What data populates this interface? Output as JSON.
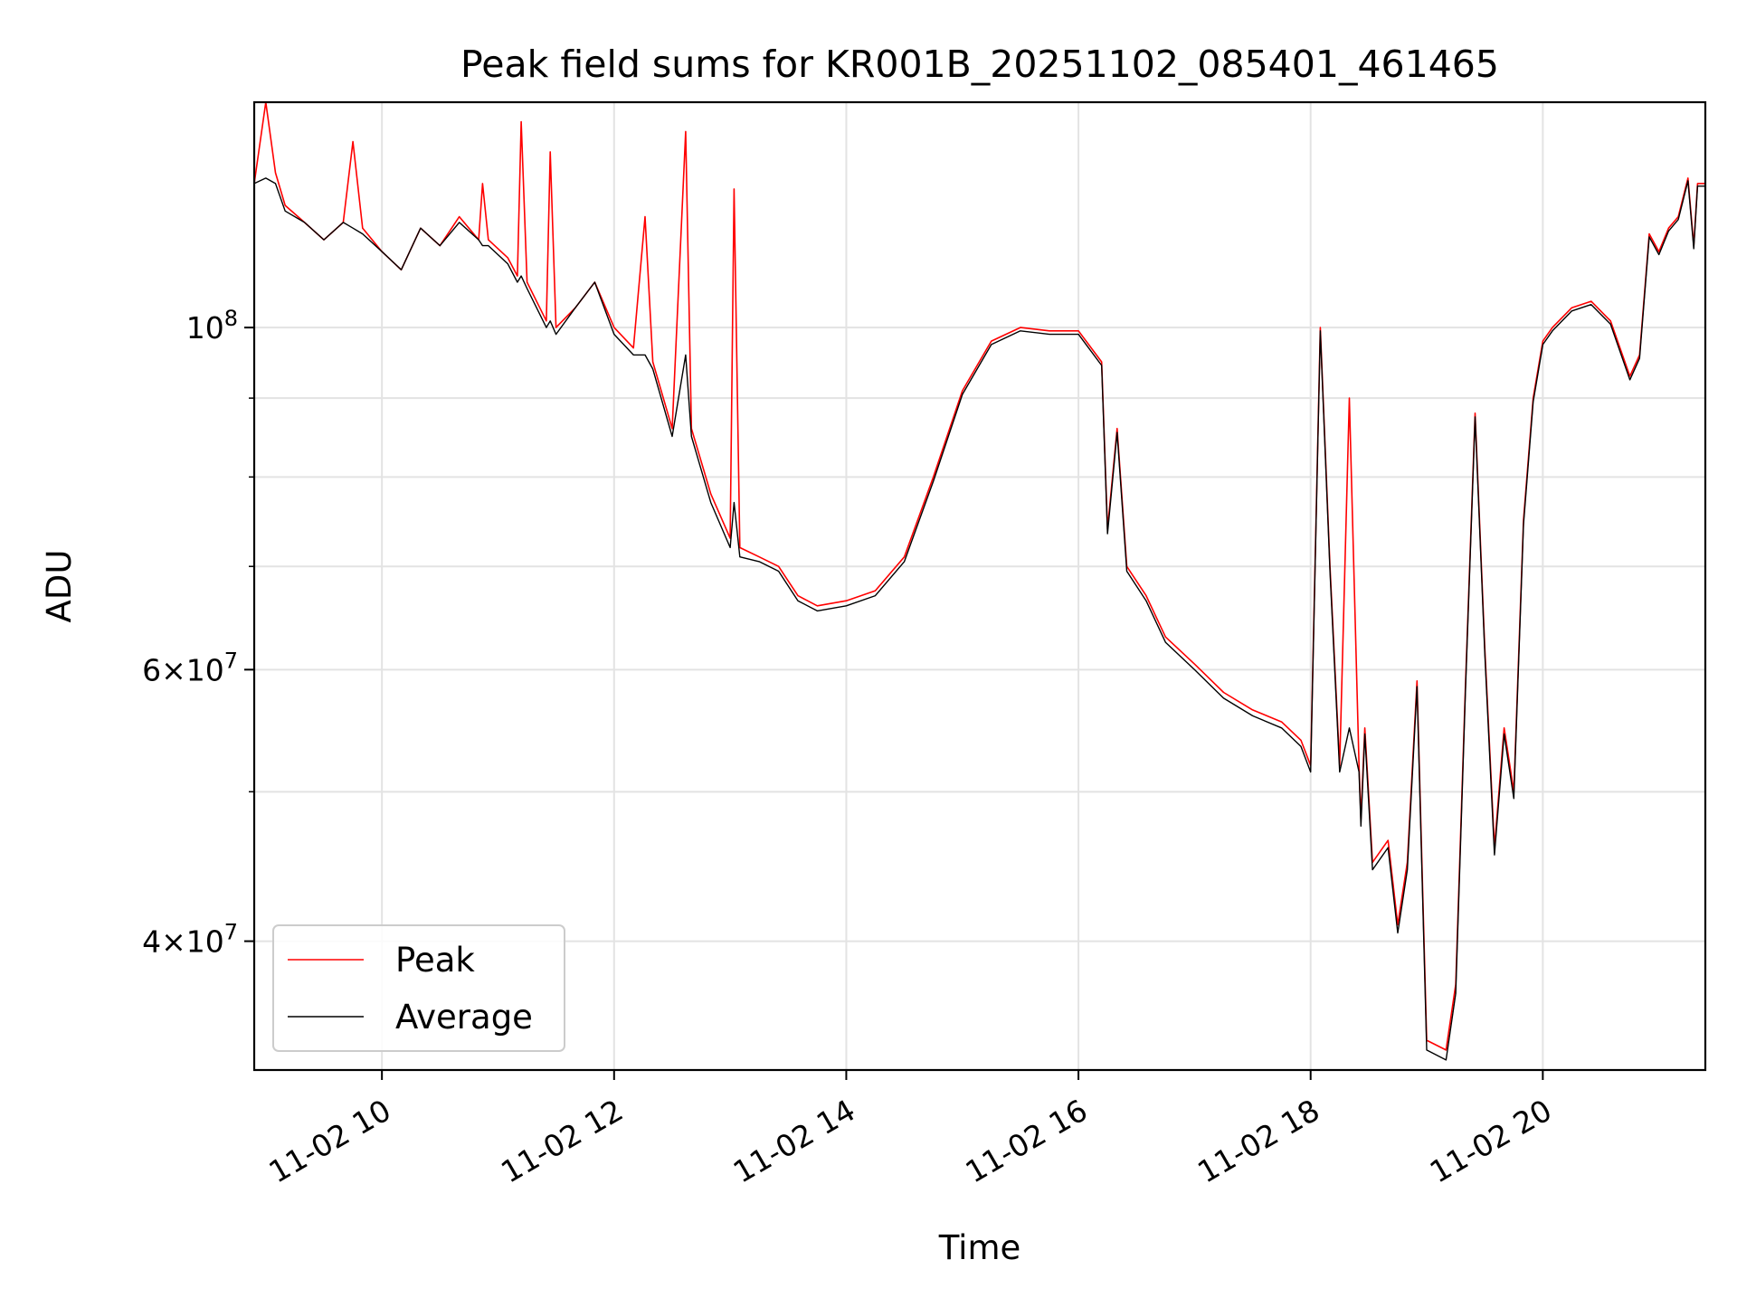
{
  "chart_data": {
    "type": "line",
    "title": "Peak field sums for KR001B_20251102_085401_461465",
    "xlabel": "Time",
    "ylabel": "ADU",
    "yscale": "log",
    "grid": true,
    "legend_position": "lower-left",
    "xlim": [
      "2025-11-02 08:54",
      "2025-11-02 21:24"
    ],
    "ylim": [
      33000000,
      140000000
    ],
    "x_ticks": [
      {
        "value": "2025-11-02 10:00",
        "label": "11-02 10"
      },
      {
        "value": "2025-11-02 12:00",
        "label": "11-02 12"
      },
      {
        "value": "2025-11-02 14:00",
        "label": "11-02 14"
      },
      {
        "value": "2025-11-02 16:00",
        "label": "11-02 16"
      },
      {
        "value": "2025-11-02 18:00",
        "label": "11-02 18"
      },
      {
        "value": "2025-11-02 20:00",
        "label": "11-02 20"
      }
    ],
    "y_ticks": [
      {
        "value": 40000000,
        "mantissa": "4",
        "exponent": "7",
        "base": "10"
      },
      {
        "value": 60000000,
        "mantissa": "6",
        "exponent": "7",
        "base": "10"
      },
      {
        "value": 100000000,
        "mantissa": "",
        "exponent": "8",
        "base": "10"
      }
    ],
    "y_minor_ticks": [
      50000000,
      70000000,
      80000000,
      90000000
    ],
    "series": [
      {
        "name": "Peak",
        "color": "#ff0000",
        "x": [
          "2025-11-02 08:54",
          "2025-11-02 09:00",
          "2025-11-02 09:05",
          "2025-11-02 09:10",
          "2025-11-02 09:20",
          "2025-11-02 09:30",
          "2025-11-02 09:40",
          "2025-11-02 09:45",
          "2025-11-02 09:50",
          "2025-11-02 10:00",
          "2025-11-02 10:10",
          "2025-11-02 10:20",
          "2025-11-02 10:30",
          "2025-11-02 10:40",
          "2025-11-02 10:50",
          "2025-11-02 10:52",
          "2025-11-02 10:55",
          "2025-11-02 11:05",
          "2025-11-02 11:10",
          "2025-11-02 11:12",
          "2025-11-02 11:15",
          "2025-11-02 11:25",
          "2025-11-02 11:27",
          "2025-11-02 11:30",
          "2025-11-02 11:40",
          "2025-11-02 11:50",
          "2025-11-02 12:00",
          "2025-11-02 12:10",
          "2025-11-02 12:16",
          "2025-11-02 12:20",
          "2025-11-02 12:30",
          "2025-11-02 12:37",
          "2025-11-02 12:40",
          "2025-11-02 12:50",
          "2025-11-02 13:00",
          "2025-11-02 13:02",
          "2025-11-02 13:05",
          "2025-11-02 13:15",
          "2025-11-02 13:25",
          "2025-11-02 13:35",
          "2025-11-02 13:45",
          "2025-11-02 14:00",
          "2025-11-02 14:15",
          "2025-11-02 14:30",
          "2025-11-02 14:45",
          "2025-11-02 15:00",
          "2025-11-02 15:15",
          "2025-11-02 15:30",
          "2025-11-02 15:45",
          "2025-11-02 16:00",
          "2025-11-02 16:12",
          "2025-11-02 16:15",
          "2025-11-02 16:20",
          "2025-11-02 16:25",
          "2025-11-02 16:35",
          "2025-11-02 16:45",
          "2025-11-02 17:00",
          "2025-11-02 17:15",
          "2025-11-02 17:30",
          "2025-11-02 17:45",
          "2025-11-02 17:55",
          "2025-11-02 18:00",
          "2025-11-02 18:05",
          "2025-11-02 18:10",
          "2025-11-02 18:15",
          "2025-11-02 18:20",
          "2025-11-02 18:25",
          "2025-11-02 18:26",
          "2025-11-02 18:28",
          "2025-11-02 18:32",
          "2025-11-02 18:40",
          "2025-11-02 18:45",
          "2025-11-02 18:50",
          "2025-11-02 18:55",
          "2025-11-02 19:00",
          "2025-11-02 19:10",
          "2025-11-02 19:15",
          "2025-11-02 19:20",
          "2025-11-02 19:25",
          "2025-11-02 19:30",
          "2025-11-02 19:35",
          "2025-11-02 19:40",
          "2025-11-02 19:45",
          "2025-11-02 19:50",
          "2025-11-02 19:55",
          "2025-11-02 20:00",
          "2025-11-02 20:05",
          "2025-11-02 20:15",
          "2025-11-02 20:25",
          "2025-11-02 20:35",
          "2025-11-02 20:45",
          "2025-11-02 20:50",
          "2025-11-02 20:55",
          "2025-11-02 21:00",
          "2025-11-02 21:05",
          "2025-11-02 21:10",
          "2025-11-02 21:15",
          "2025-11-02 21:18",
          "2025-11-02 21:20",
          "2025-11-02 21:24"
        ],
        "y": [
          124000000,
          140000000,
          126000000,
          120000000,
          117000000,
          114000000,
          117000000,
          132000000,
          116000000,
          112000000,
          109000000,
          116000000,
          113000000,
          118000000,
          114000000,
          124000000,
          114000000,
          111000000,
          108000000,
          136000000,
          107000000,
          101000000,
          130000000,
          100000000,
          103000000,
          107000000,
          100000000,
          97000000,
          118000000,
          95000000,
          86000000,
          134000000,
          86000000,
          78000000,
          73000000,
          123000000,
          72000000,
          71000000,
          70000000,
          67000000,
          66000000,
          66500000,
          67500000,
          71000000,
          80000000,
          91000000,
          98000000,
          100000000,
          99500000,
          99500000,
          95000000,
          74000000,
          86000000,
          70000000,
          67000000,
          63000000,
          60500000,
          58000000,
          56500000,
          55500000,
          54000000,
          52000000,
          100000000,
          70000000,
          52000000,
          90000000,
          52000000,
          48000000,
          55000000,
          45000000,
          46500000,
          41000000,
          45000000,
          59000000,
          34500000,
          34000000,
          37500000,
          58500000,
          88000000,
          62000000,
          46000000,
          55000000,
          50000000,
          75000000,
          90000000,
          98000000,
          100000000,
          103000000,
          104000000,
          101000000,
          93000000,
          96000000,
          115000000,
          112000000,
          116000000,
          118000000,
          125000000,
          113000000,
          124000000,
          124000000
        ]
      },
      {
        "name": "Average",
        "color": "#000000",
        "x": [
          "2025-11-02 08:54",
          "2025-11-02 09:00",
          "2025-11-02 09:05",
          "2025-11-02 09:10",
          "2025-11-02 09:20",
          "2025-11-02 09:30",
          "2025-11-02 09:40",
          "2025-11-02 09:45",
          "2025-11-02 09:50",
          "2025-11-02 10:00",
          "2025-11-02 10:10",
          "2025-11-02 10:20",
          "2025-11-02 10:30",
          "2025-11-02 10:40",
          "2025-11-02 10:50",
          "2025-11-02 10:52",
          "2025-11-02 10:55",
          "2025-11-02 11:05",
          "2025-11-02 11:10",
          "2025-11-02 11:12",
          "2025-11-02 11:15",
          "2025-11-02 11:25",
          "2025-11-02 11:27",
          "2025-11-02 11:30",
          "2025-11-02 11:40",
          "2025-11-02 11:50",
          "2025-11-02 12:00",
          "2025-11-02 12:10",
          "2025-11-02 12:16",
          "2025-11-02 12:20",
          "2025-11-02 12:30",
          "2025-11-02 12:37",
          "2025-11-02 12:40",
          "2025-11-02 12:50",
          "2025-11-02 13:00",
          "2025-11-02 13:02",
          "2025-11-02 13:05",
          "2025-11-02 13:15",
          "2025-11-02 13:25",
          "2025-11-02 13:35",
          "2025-11-02 13:45",
          "2025-11-02 14:00",
          "2025-11-02 14:15",
          "2025-11-02 14:30",
          "2025-11-02 14:45",
          "2025-11-02 15:00",
          "2025-11-02 15:15",
          "2025-11-02 15:30",
          "2025-11-02 15:45",
          "2025-11-02 16:00",
          "2025-11-02 16:12",
          "2025-11-02 16:15",
          "2025-11-02 16:20",
          "2025-11-02 16:25",
          "2025-11-02 16:35",
          "2025-11-02 16:45",
          "2025-11-02 17:00",
          "2025-11-02 17:15",
          "2025-11-02 17:30",
          "2025-11-02 17:45",
          "2025-11-02 17:55",
          "2025-11-02 18:00",
          "2025-11-02 18:05",
          "2025-11-02 18:10",
          "2025-11-02 18:15",
          "2025-11-02 18:20",
          "2025-11-02 18:25",
          "2025-11-02 18:26",
          "2025-11-02 18:28",
          "2025-11-02 18:32",
          "2025-11-02 18:40",
          "2025-11-02 18:45",
          "2025-11-02 18:50",
          "2025-11-02 18:55",
          "2025-11-02 19:00",
          "2025-11-02 19:10",
          "2025-11-02 19:15",
          "2025-11-02 19:20",
          "2025-11-02 19:25",
          "2025-11-02 19:30",
          "2025-11-02 19:35",
          "2025-11-02 19:40",
          "2025-11-02 19:45",
          "2025-11-02 19:50",
          "2025-11-02 19:55",
          "2025-11-02 20:00",
          "2025-11-02 20:05",
          "2025-11-02 20:15",
          "2025-11-02 20:25",
          "2025-11-02 20:35",
          "2025-11-02 20:45",
          "2025-11-02 20:50",
          "2025-11-02 20:55",
          "2025-11-02 21:00",
          "2025-11-02 21:05",
          "2025-11-02 21:10",
          "2025-11-02 21:15",
          "2025-11-02 21:18",
          "2025-11-02 21:20",
          "2025-11-02 21:24"
        ],
        "y": [
          124000000,
          125000000,
          124000000,
          119000000,
          117000000,
          114000000,
          117000000,
          116000000,
          115000000,
          112000000,
          109000000,
          116000000,
          113000000,
          117000000,
          114000000,
          113000000,
          113000000,
          110000000,
          107000000,
          108000000,
          106000000,
          100000000,
          101000000,
          99000000,
          103000000,
          107000000,
          99000000,
          96000000,
          96000000,
          94000000,
          85000000,
          96000000,
          85000000,
          77000000,
          72000000,
          77000000,
          71000000,
          70500000,
          69500000,
          66500000,
          65500000,
          66000000,
          67000000,
          70500000,
          79500000,
          90500000,
          97500000,
          99500000,
          99000000,
          99000000,
          94500000,
          73500000,
          85500000,
          69500000,
          66500000,
          62500000,
          60000000,
          57500000,
          56000000,
          55000000,
          53500000,
          51500000,
          99500000,
          69500000,
          51500000,
          55000000,
          51500000,
          47500000,
          54500000,
          44500000,
          46000000,
          40500000,
          44500000,
          58500000,
          34000000,
          33500000,
          37000000,
          58000000,
          87500000,
          61500000,
          45500000,
          54500000,
          49500000,
          74500000,
          89500000,
          97500000,
          99500000,
          102500000,
          103500000,
          100500000,
          92500000,
          95500000,
          114500000,
          111500000,
          115500000,
          117500000,
          124500000,
          112500000,
          123500000,
          123500000
        ]
      }
    ]
  }
}
